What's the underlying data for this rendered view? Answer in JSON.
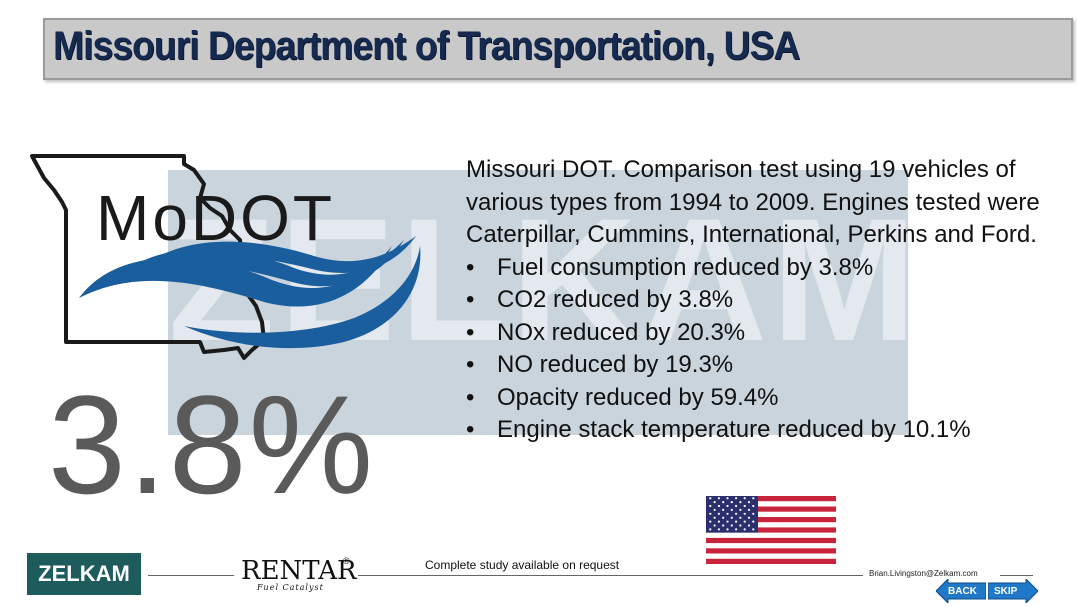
{
  "header": {
    "title": "Missouri Department of Transportation, USA"
  },
  "watermark": {
    "text": "ZELKAM"
  },
  "logo": {
    "name": "modot-logo",
    "text": "MoDOT",
    "colors": {
      "outline": "#1a1a1a",
      "waves": "#1a5e9e"
    }
  },
  "stat": {
    "value": "3.8%"
  },
  "description": {
    "intro": "Missouri DOT. Comparison test using 19 vehicles of various types from 1994 to 2009. Engines tested were Caterpillar, Cummins, International, Perkins and Ford.",
    "bullets": [
      "Fuel consumption reduced by 3.8%",
      "CO2 reduced by 3.8%",
      "NOx reduced by 20.3%",
      "NO reduced by 19.3%",
      "Opacity reduced by 59.4%",
      "Engine stack temperature reduced by 10.1%"
    ],
    "bullet_glyph": "•"
  },
  "flag": {
    "icon": "us-flag-icon",
    "colors": {
      "red": "#c8243b",
      "white": "#ffffff",
      "blue": "#2b2f6e"
    }
  },
  "footer": {
    "brand": "ZELKAM",
    "rentar": {
      "name": "RENTAR",
      "reg": "®",
      "subtitle": "Fuel Catalyst"
    },
    "note": "Complete study available on request",
    "email": "Brian.Livingston@Zelkam.com",
    "back_label": "BACK",
    "skip_label": "SKIP"
  },
  "colors": {
    "title_bg": "#c9c9c9",
    "title_text": "#16294f",
    "zelkam_green": "#1d5b5c",
    "nav_blue": "#1f78c8",
    "watermark_bg": "#c9d4dd"
  }
}
